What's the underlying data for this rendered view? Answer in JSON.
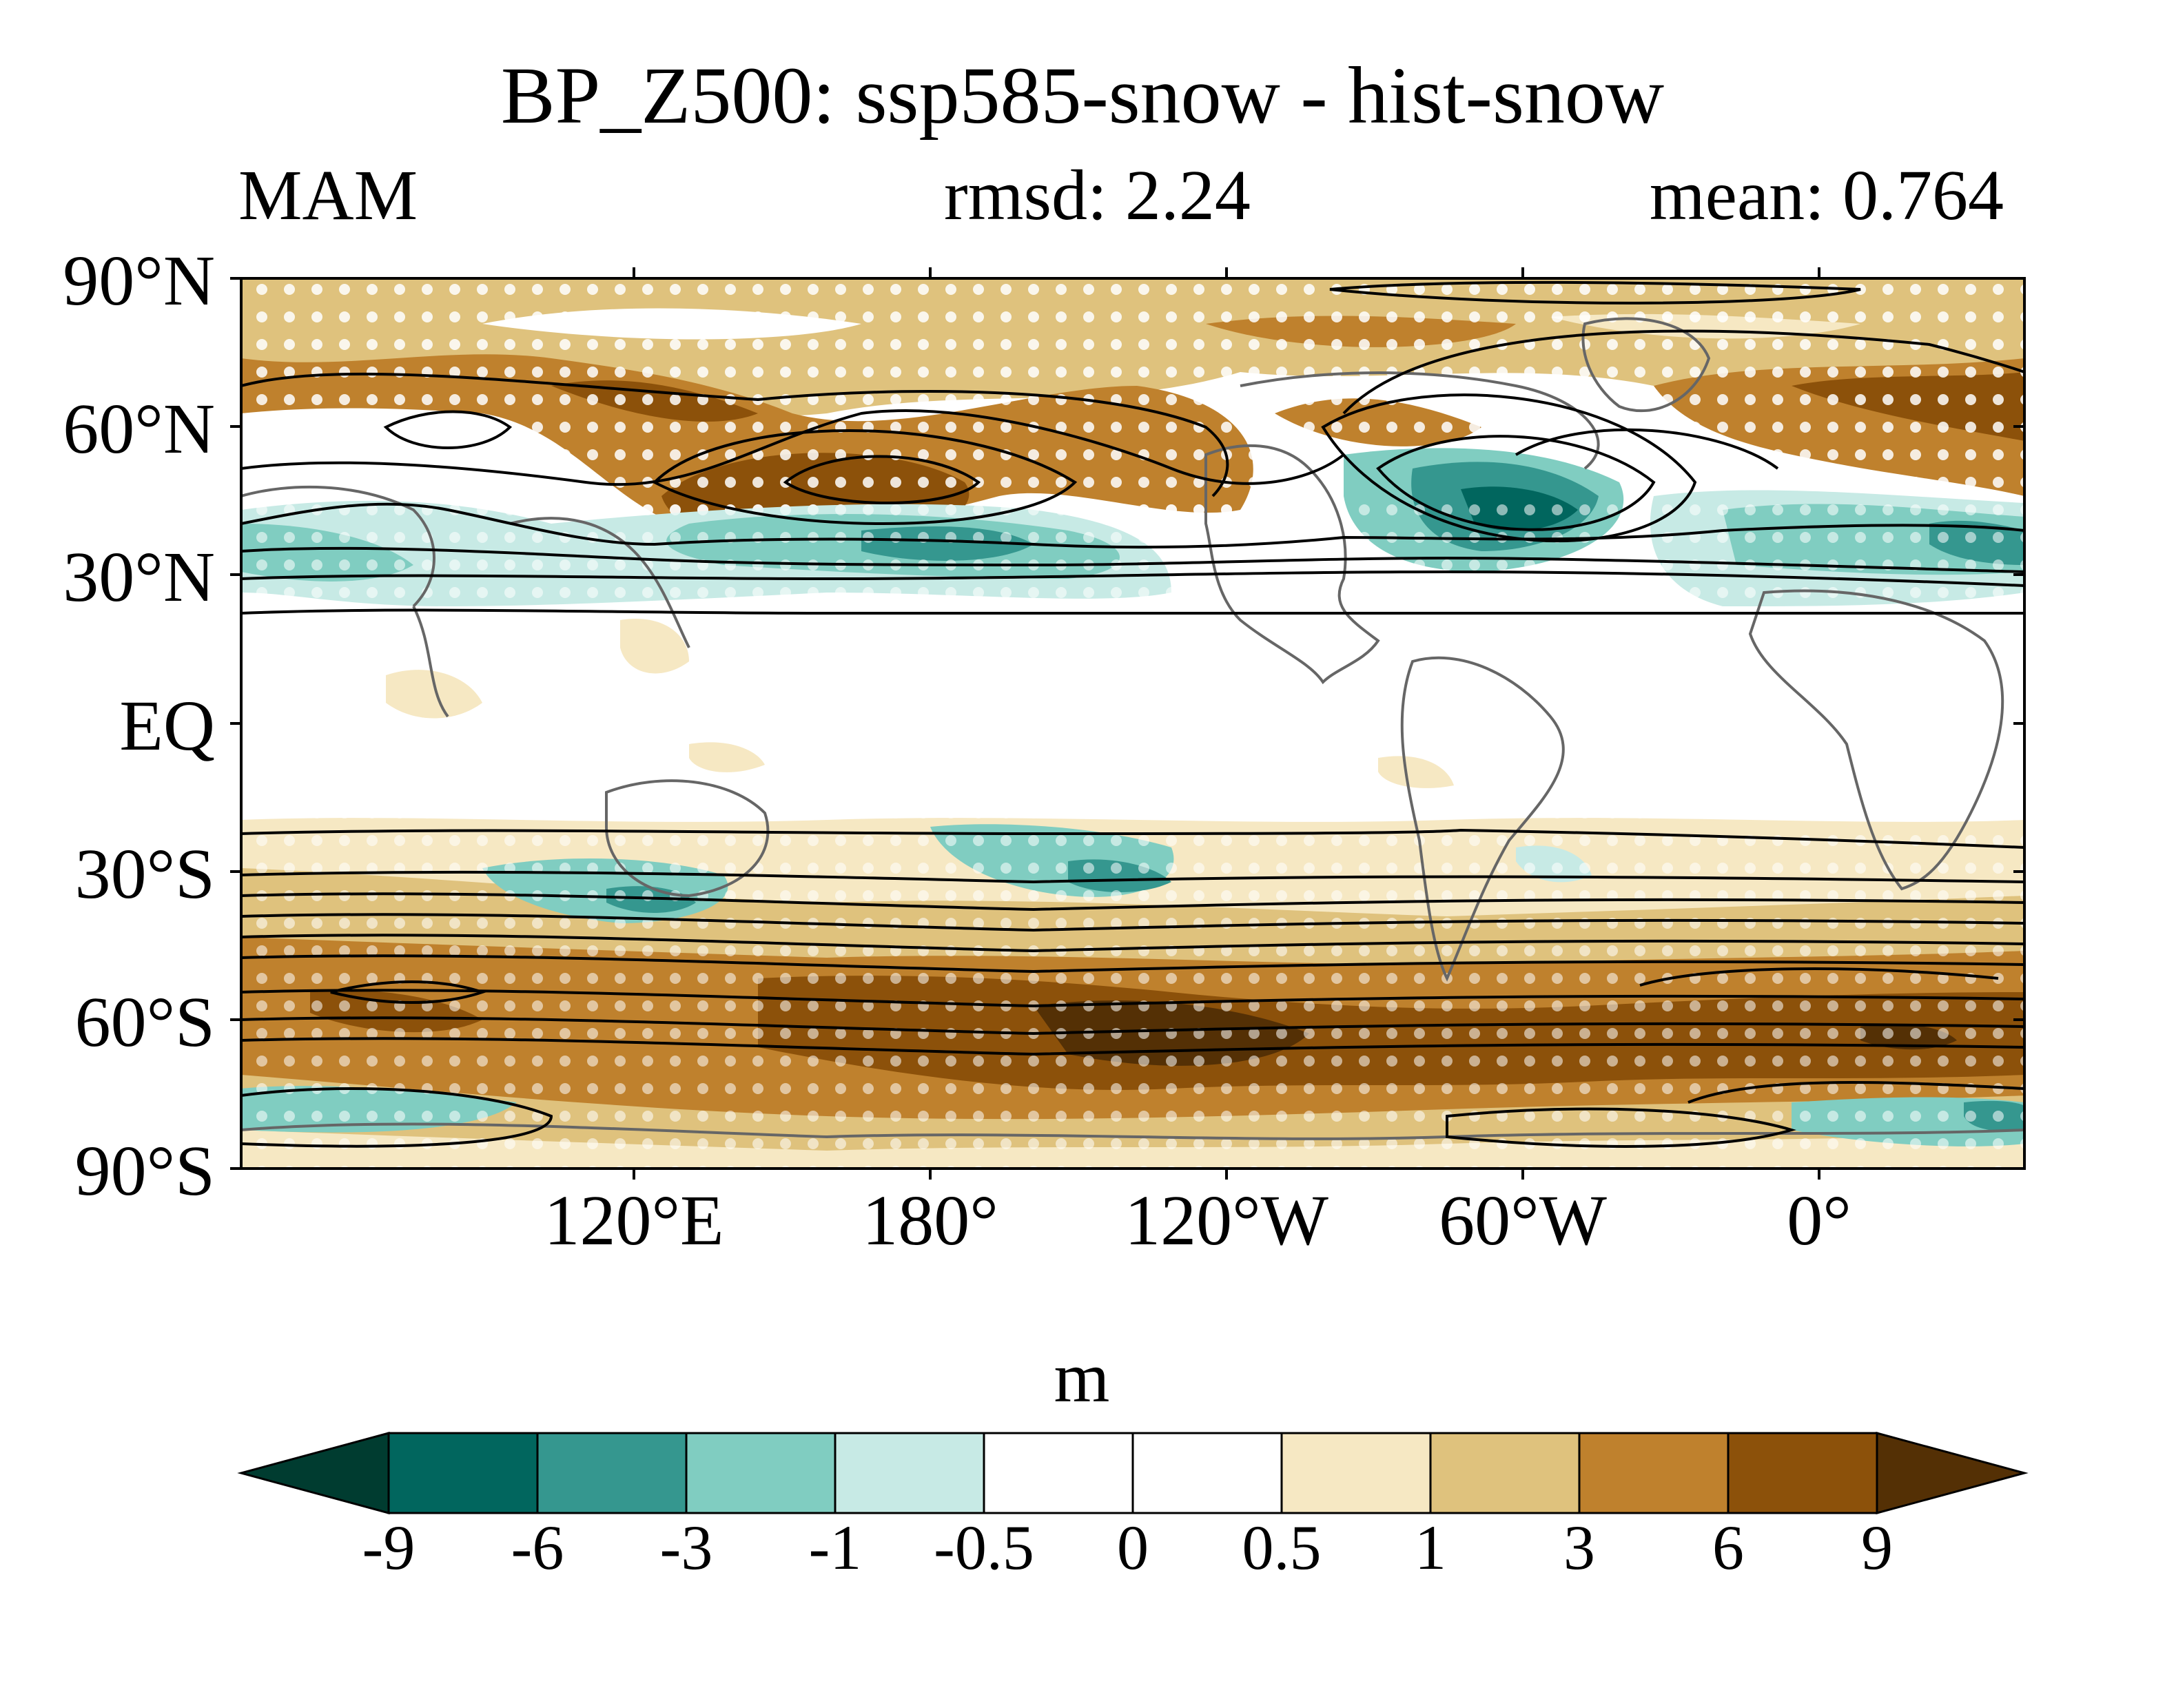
{
  "title": "BP_Z500: ssp585-snow - hist-snow",
  "subtitle_left": "MAM",
  "subtitle_center": "rmsd: 2.24",
  "subtitle_right": "mean: 0.764",
  "lat_labels": [
    "90°N",
    "60°N",
    "30°N",
    "EQ",
    "30°S",
    "60°S",
    "90°S"
  ],
  "lon_labels": [
    "120°E",
    "180°",
    "120°W",
    "60°W",
    "0°"
  ],
  "colorbar": {
    "unit": "m",
    "tick_labels": [
      "-9",
      "-6",
      "-3",
      "-1",
      "-0.5",
      "0",
      "0.5",
      "1",
      "3",
      "6",
      "9"
    ],
    "colors": [
      "#003c30",
      "#01665e",
      "#35978f",
      "#80cdc1",
      "#c7eae5",
      "#ffffff",
      "#ffffff",
      "#f6e8c3",
      "#dfc27d",
      "#bf812d",
      "#8c510a",
      "#543005"
    ]
  },
  "map_colors": {
    "land_outline": "#666666",
    "contour": "#000000",
    "stipple": "#ffffff"
  }
}
